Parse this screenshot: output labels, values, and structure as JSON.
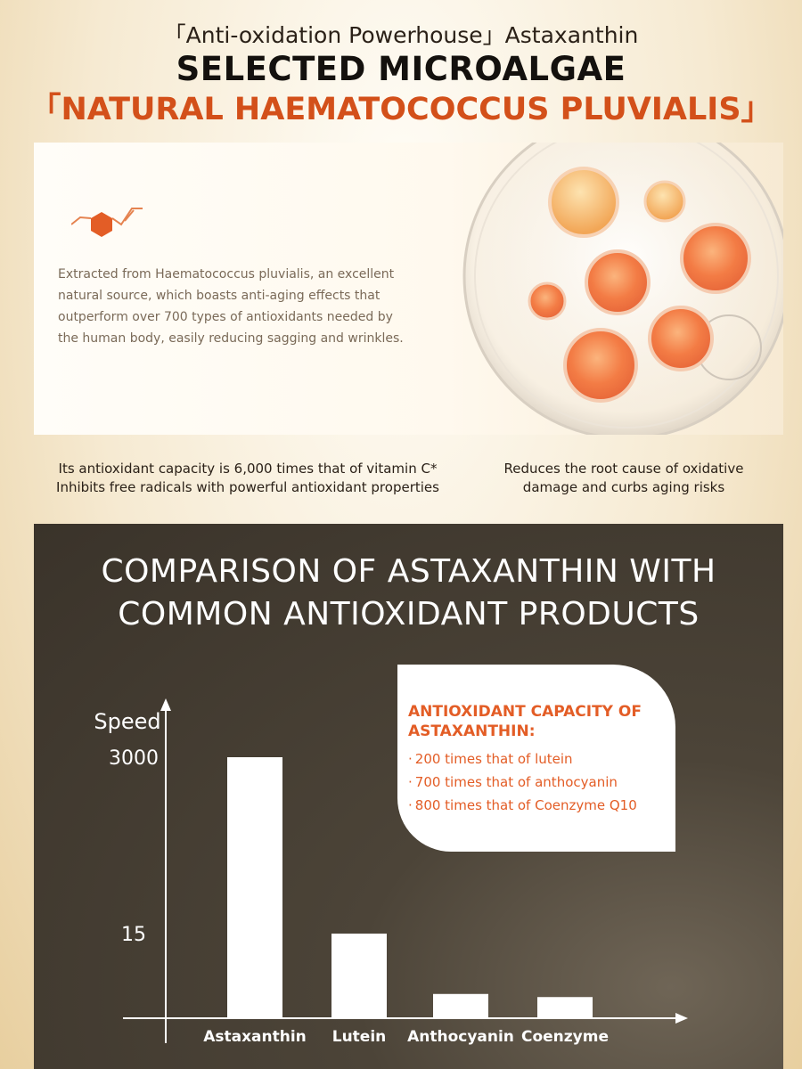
{
  "header": {
    "subtitle": "「Anti-oxidation Powerhouse」Astaxanthin",
    "headline": "SELECTED MICROALGAE",
    "headline_accent": "「NATURAL HAEMATOCOCCUS PLUVIALIS」"
  },
  "feature": {
    "description": "Extracted from Haematococcus pluvialis, an excellent natural source, which boasts anti-aging effects that outperform over 700 types of antioxidants needed by the human body, easily reducing sagging and wrinkles."
  },
  "claims": {
    "left_line1": "Its antioxidant capacity is 6,000 times that of vitamin C*",
    "left_line2": "Inhibits free radicals with powerful antioxidant properties",
    "right_line1": "Reduces the root cause of oxidative",
    "right_line2": "damage and curbs aging risks"
  },
  "comparison": {
    "title_line1": "COMPARISON OF ASTAXANTHIN WITH",
    "title_line2": "COMMON ANTIOXIDANT PRODUCTS",
    "info_title": "ANTIOXIDANT CAPACITY OF ASTAXANTHIN:",
    "info_items": [
      "200 times that of lutein",
      "700 times that of anthocyanin",
      "800 times that of Coenzyme Q10"
    ]
  },
  "colors": {
    "accent_orange": "#d3501a",
    "info_orange": "#e35d26",
    "panel_dark": "#3f382e",
    "bar_white": "#ffffff"
  },
  "chart_data": {
    "type": "bar",
    "categories": [
      "Astaxanthin",
      "Lutein",
      "Anthocyanin",
      "Coenzyme"
    ],
    "values": [
      3000,
      15,
      4.3,
      3.75
    ],
    "ylabel": "Speed",
    "yticks": [
      3000,
      15
    ],
    "axis_scale": "non-linear (broken axis)",
    "grid": false
  }
}
